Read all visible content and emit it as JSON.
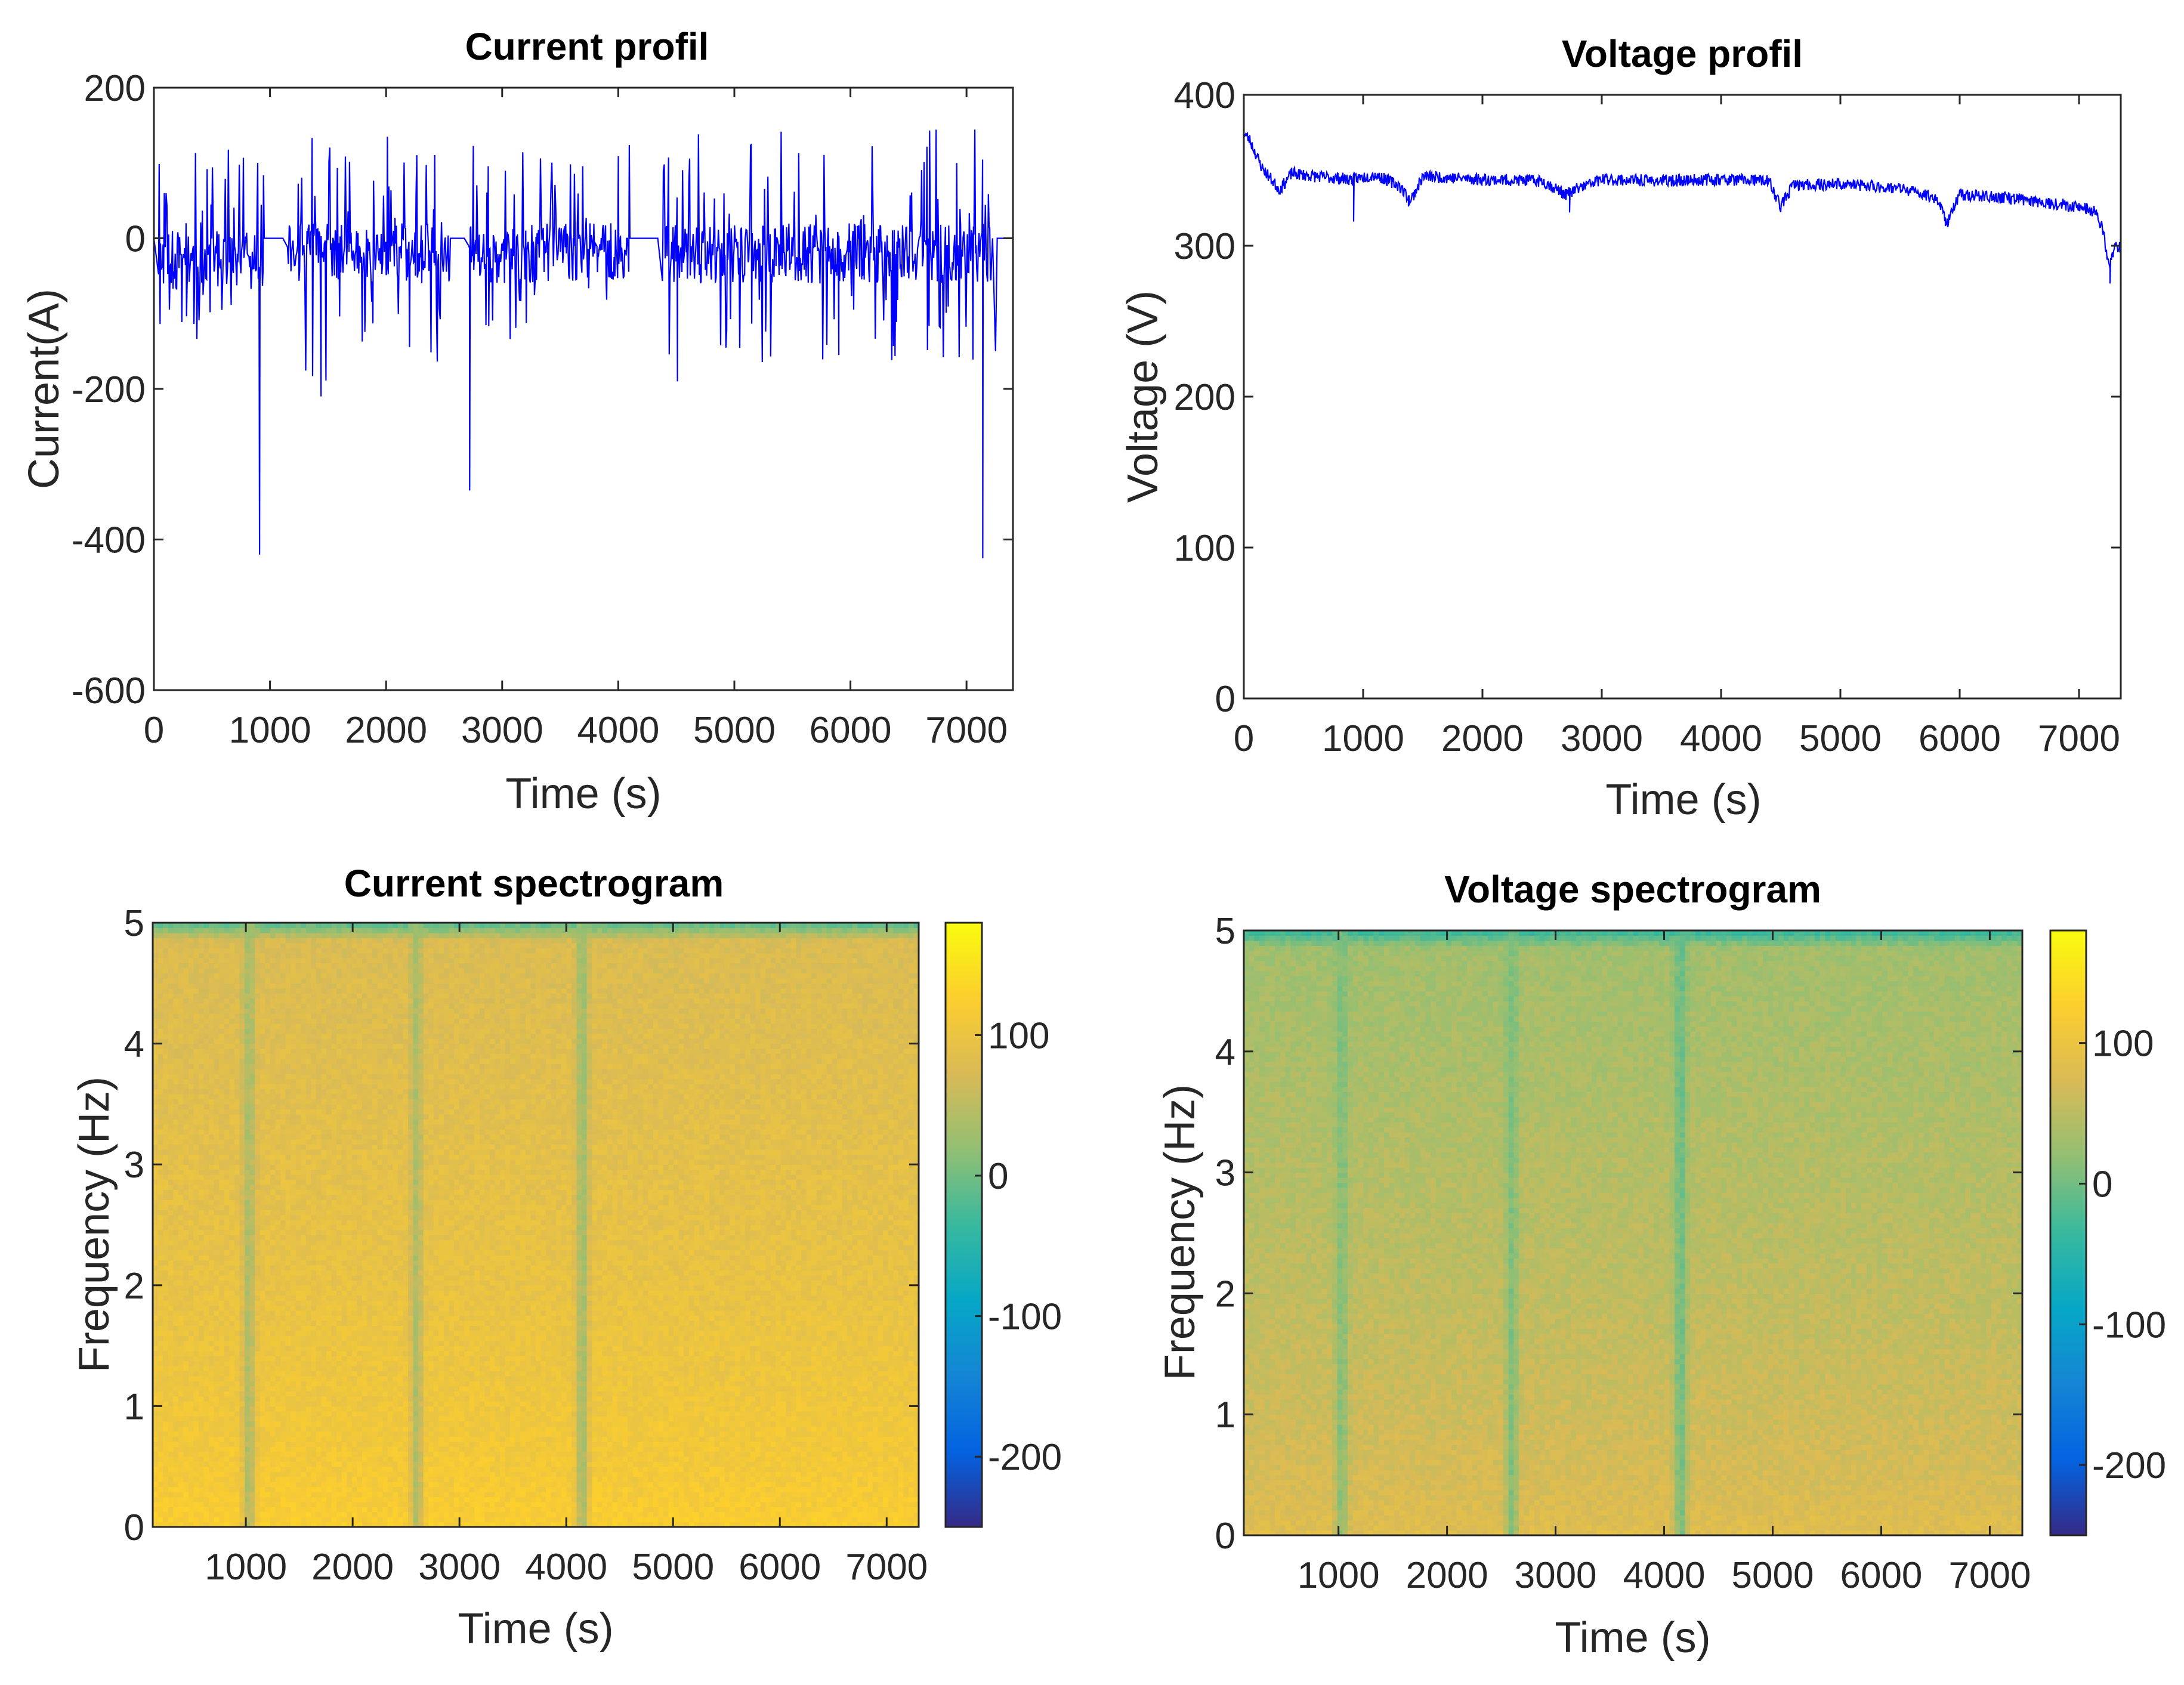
{
  "chart_data": [
    {
      "id": "current-profile",
      "type": "line",
      "title": "Current profil",
      "xlabel": "Time (s)",
      "ylabel": "Current(A)",
      "xlim": [
        0,
        7400
      ],
      "ylim": [
        -600,
        200
      ],
      "xticks": [
        0,
        1000,
        2000,
        3000,
        4000,
        5000,
        6000,
        7000
      ],
      "yticks": [
        -600,
        -400,
        -200,
        0,
        200
      ],
      "xtick_labels": [
        "0",
        "1000",
        "2000",
        "3000",
        "4000",
        "5000",
        "6000",
        "7000"
      ],
      "ytick_labels": [
        "-600",
        "-400",
        "-200",
        "0",
        "200"
      ],
      "color": "#0000ff",
      "series": [
        {
          "name": "Current",
          "segments": [
            {
              "range": [
                40,
                950
              ],
              "mean": -30,
              "spike_max": 130,
              "spike_min": -150
            },
            {
              "range": [
                1150,
                2550
              ],
              "mean": -20,
              "spike_max": 140,
              "spike_min": -210
            },
            {
              "range": [
                2700,
                4100
              ],
              "mean": -20,
              "spike_max": 125,
              "spike_min": -150
            },
            {
              "range": [
                4350,
                7220
              ],
              "mean": -20,
              "spike_max": 145,
              "spike_min": -190
            }
          ],
          "idle_level": 0,
          "notable_points": [
            {
              "x": 910,
              "y": -420
            },
            {
              "x": 1440,
              "y": -210
            },
            {
              "x": 2720,
              "y": -335
            },
            {
              "x": 4510,
              "y": -190
            },
            {
              "x": 5900,
              "y": -155
            },
            {
              "x": 7140,
              "y": -425
            },
            {
              "x": 7250,
              "y": -150
            }
          ]
        }
      ]
    },
    {
      "id": "voltage-profile",
      "type": "line",
      "title": "Voltage profil",
      "xlabel": "Time (s)",
      "ylabel": "Voltage (V)",
      "xlim": [
        0,
        7350
      ],
      "ylim": [
        0,
        400
      ],
      "xticks": [
        0,
        1000,
        2000,
        3000,
        4000,
        5000,
        6000,
        7000
      ],
      "yticks": [
        0,
        100,
        200,
        300,
        400
      ],
      "xtick_labels": [
        "0",
        "1000",
        "2000",
        "3000",
        "4000",
        "5000",
        "6000",
        "7000"
      ],
      "ytick_labels": [
        "0",
        "100",
        "200",
        "300",
        "400"
      ],
      "color": "#0000ff",
      "series": [
        {
          "name": "Voltage",
          "x": [
            0,
            50,
            150,
            250,
            300,
            400,
            600,
            900,
            1100,
            1300,
            1400,
            1500,
            2000,
            2500,
            2700,
            2800,
            3000,
            3500,
            4000,
            4400,
            4500,
            4600,
            5000,
            5500,
            5800,
            5900,
            6000,
            6500,
            7000,
            7150,
            7200,
            7250,
            7300,
            7350
          ],
          "y": [
            375,
            370,
            352,
            342,
            337,
            348,
            346,
            344,
            347,
            340,
            330,
            346,
            344,
            343,
            334,
            338,
            344,
            343,
            344,
            343,
            326,
            340,
            341,
            338,
            332,
            316,
            334,
            331,
            326,
            322,
            310,
            285,
            300,
            300
          ],
          "dips": [
            {
              "x": 920,
              "y": 316
            },
            {
              "x": 1380,
              "y": 326
            },
            {
              "x": 2730,
              "y": 322
            },
            {
              "x": 4490,
              "y": 325
            },
            {
              "x": 5880,
              "y": 313
            },
            {
              "x": 7260,
              "y": 275
            }
          ]
        }
      ]
    },
    {
      "id": "current-spectrogram",
      "type": "heatmap",
      "title": "Current spectrogram",
      "xlabel": "Time (s)",
      "ylabel": "Frequency (Hz)",
      "xlim": [
        128,
        7300
      ],
      "ylim": [
        0,
        5
      ],
      "xticks": [
        1000,
        2000,
        3000,
        4000,
        5000,
        6000,
        7000
      ],
      "yticks": [
        0,
        1,
        2,
        3,
        4,
        5
      ],
      "xtick_labels": [
        "1000",
        "2000",
        "3000",
        "4000",
        "5000",
        "6000",
        "7000"
      ],
      "ytick_labels": [
        "0",
        "1",
        "2",
        "3",
        "4",
        "5"
      ],
      "colorbar": {
        "range": [
          -250,
          180
        ],
        "ticks": [
          -200,
          -100,
          0,
          100
        ],
        "tick_labels": [
          "-200",
          "-100",
          "0",
          "100"
        ],
        "colormap": "parula"
      },
      "power_profile": {
        "low_freq": 125,
        "high_freq": 75,
        "top_edge": -20
      },
      "gap_bands": [
        {
          "x": 1030,
          "value": 30
        },
        {
          "x": 2600,
          "value": 35
        },
        {
          "x": 4150,
          "value": 20
        }
      ]
    },
    {
      "id": "voltage-spectrogram",
      "type": "heatmap",
      "title": "Voltage spectrogram",
      "xlabel": "Time (s)",
      "ylabel": "Frequency (Hz)",
      "xlim": [
        128,
        7300
      ],
      "ylim": [
        0,
        5
      ],
      "xticks": [
        1000,
        2000,
        3000,
        4000,
        5000,
        6000,
        7000
      ],
      "yticks": [
        0,
        1,
        2,
        3,
        4,
        5
      ],
      "xtick_labels": [
        "1000",
        "2000",
        "3000",
        "4000",
        "5000",
        "6000",
        "7000"
      ],
      "ytick_labels": [
        "0",
        "1",
        "2",
        "3",
        "4",
        "5"
      ],
      "colorbar": {
        "range": [
          -250,
          180
        ],
        "ticks": [
          -200,
          -100,
          0,
          100
        ],
        "tick_labels": [
          "-200",
          "-100",
          "0",
          "100"
        ],
        "colormap": "parula"
      },
      "power_profile": {
        "low_freq": 85,
        "high_freq": 30,
        "top_edge": -40
      },
      "gap_bands": [
        {
          "x": 1030,
          "value": 5
        },
        {
          "x": 2600,
          "value": 5
        },
        {
          "x": 4150,
          "value": -10
        }
      ]
    }
  ]
}
